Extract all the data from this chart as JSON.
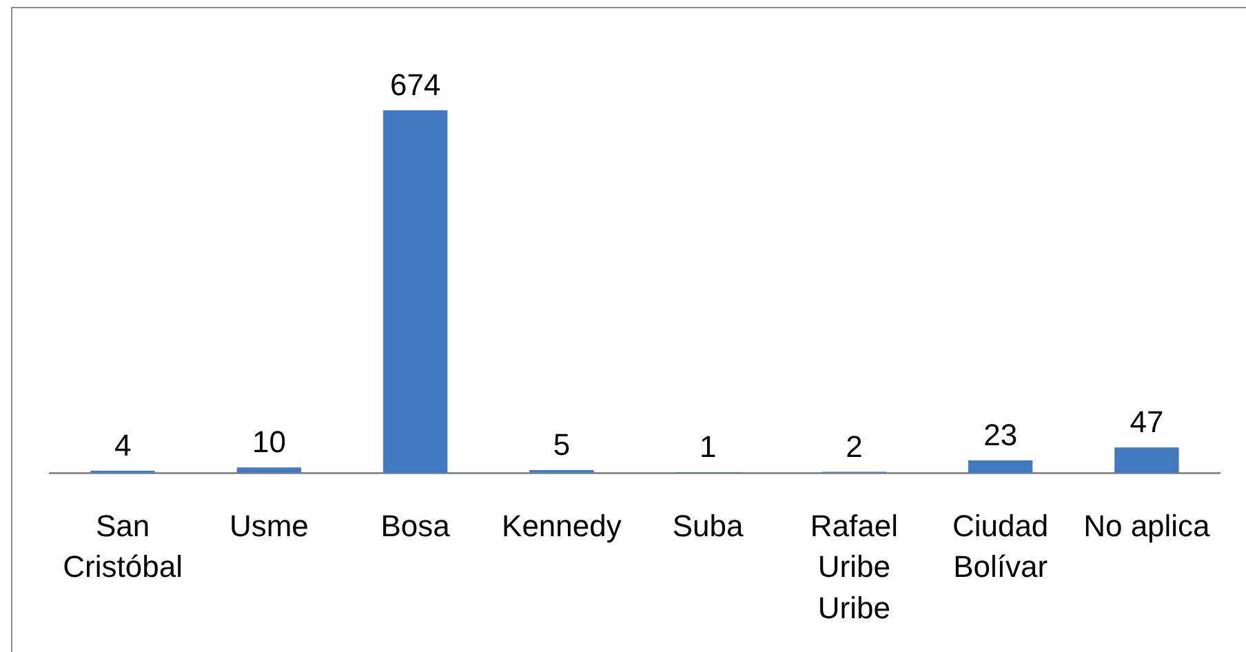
{
  "chart_data": {
    "type": "bar",
    "categories": [
      "San Cristóbal",
      "Usme",
      "Bosa",
      "Kennedy",
      "Suba",
      "Rafael Uribe Uribe",
      "Ciudad Bolívar",
      "No aplica"
    ],
    "values": [
      4,
      10,
      674,
      5,
      1,
      2,
      23,
      47
    ],
    "color": "#4279c0",
    "data_labels": true
  }
}
